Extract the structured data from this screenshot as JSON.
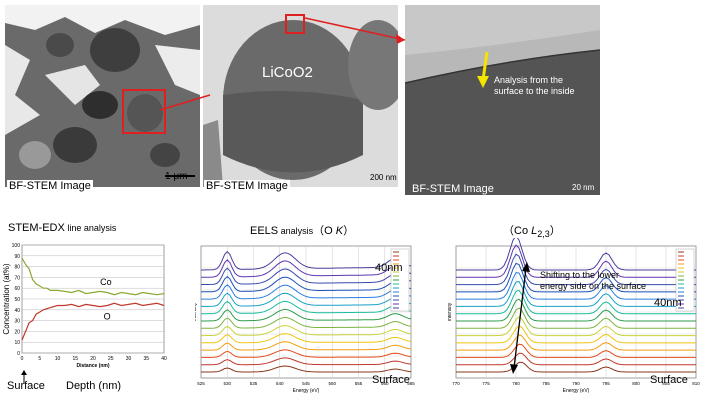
{
  "images": {
    "bf1": {
      "caption": "BF-STEM  Image",
      "scalebar": "1 μm"
    },
    "bf2": {
      "caption": "BF-STEM  Image",
      "label": "LiCoO2",
      "scalebar": "200 nm"
    },
    "bf3": {
      "caption": "BF-STEM  Image",
      "annotation": [
        "Analysis from the",
        "surface to the inside"
      ],
      "scalebar": "20 nm"
    }
  },
  "headers": {
    "edx_main": "STEM-EDX",
    "edx_sub": " line analysis",
    "eels_main": "EELS",
    "eels_sub": " analysis",
    "eels_edge": "（O ",
    "eels_edge_k": "K",
    "eels_close": "）",
    "co_open": "（Co ",
    "co_L": "L",
    "co_sub": "2,3",
    "co_close": "）"
  },
  "annotations": {
    "surface_arrow": "Surface",
    "depth": "Depth (nm)",
    "eels_40nm": "40nm",
    "eels_surface": "Surface",
    "co_40nm": "40nm",
    "co_surface": "Surface",
    "co_shift": [
      "Shifting to the lower",
      "energy side on the surface"
    ]
  },
  "chart_data": [
    {
      "type": "line",
      "title": "STEM-EDX line analysis",
      "xlabel": "Distance (nm)",
      "ylabel": "Concentration (at%)",
      "xlim": [
        0,
        40
      ],
      "ylim": [
        0,
        100
      ],
      "xticks": [
        "0",
        "5",
        "10",
        "15",
        "20",
        "25",
        "30",
        "35",
        "40"
      ],
      "yticks": [
        "0",
        "10",
        "20",
        "30",
        "40",
        "50",
        "60",
        "70",
        "80",
        "90",
        "100"
      ],
      "grid": true,
      "series": [
        {
          "name": "Co",
          "color": "#8aa833",
          "x": [
            0,
            1,
            2,
            3,
            4,
            5,
            6,
            7,
            8,
            10,
            12,
            14,
            16,
            18,
            20,
            22,
            24,
            26,
            28,
            30,
            32,
            34,
            36,
            38,
            40
          ],
          "y": [
            88,
            82,
            78,
            68,
            64,
            62,
            60,
            60,
            58,
            58,
            57,
            56,
            58,
            55,
            56,
            57,
            56,
            54,
            56,
            55,
            54,
            56,
            55,
            54,
            55
          ]
        },
        {
          "name": "O",
          "color": "#c0392b",
          "x": [
            0,
            1,
            2,
            3,
            4,
            5,
            6,
            7,
            8,
            10,
            12,
            14,
            16,
            18,
            20,
            22,
            24,
            26,
            28,
            30,
            32,
            34,
            36,
            38,
            40
          ],
          "y": [
            12,
            20,
            28,
            30,
            36,
            38,
            40,
            41,
            42,
            44,
            44,
            45,
            43,
            45,
            44,
            43,
            44,
            46,
            44,
            45,
            46,
            44,
            45,
            46,
            44
          ]
        }
      ]
    },
    {
      "type": "line",
      "title": "EELS analysis (O K)",
      "xlabel": "Energy (eV)",
      "ylabel": "Intensity",
      "xlim": [
        525,
        565
      ],
      "xticks": [
        "525",
        "530",
        "535",
        "540",
        "545",
        "550",
        "555",
        "560",
        "565"
      ],
      "grid": true,
      "peaks_eV": [
        530,
        541,
        562
      ],
      "n_spectra": 15,
      "top_label": "40nm",
      "bottom_label": "Surface"
    },
    {
      "type": "line",
      "title": "(Co L2,3)",
      "xlabel": "Energy (eV)",
      "ylabel": "Intensity",
      "xlim": [
        770,
        810
      ],
      "xticks": [
        "770",
        "775",
        "780",
        "785",
        "790",
        "795",
        "800",
        "805",
        "810"
      ],
      "grid": true,
      "peaks_eV": [
        780,
        795
      ],
      "n_spectra": 15,
      "top_label": "40nm",
      "bottom_label": "Surface"
    }
  ]
}
